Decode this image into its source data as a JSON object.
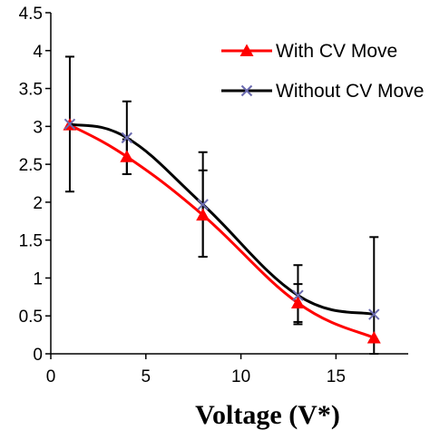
{
  "chart_data": {
    "type": "line",
    "title": "",
    "xlabel": "Voltage  (V*)",
    "ylabel": "",
    "xlim": [
      0,
      18.8
    ],
    "ylim": [
      0,
      4.5
    ],
    "xticks": [
      0,
      5,
      10,
      15
    ],
    "xtick_labels": [
      "0",
      "5",
      "10",
      "15"
    ],
    "yticks": [
      0,
      0.5,
      1,
      1.5,
      2,
      2.5,
      3,
      3.5,
      4,
      4.5
    ],
    "ytick_labels": [
      "0",
      "0.5",
      "1",
      "1.5",
      "2",
      "2.5",
      "3",
      "3.5",
      "4",
      "4.5"
    ],
    "grid": false,
    "legend_position": "top-right",
    "series": [
      {
        "name": "With CV Move",
        "color": "#ff0000",
        "marker": "triangle",
        "x": [
          1,
          4,
          8,
          13,
          17
        ],
        "y": [
          3.02,
          2.6,
          1.83,
          0.67,
          0.21
        ],
        "error_low": [
          null,
          2.37,
          1.28,
          0.42,
          null
        ],
        "error_high": [
          null,
          2.83,
          2.42,
          0.92,
          null
        ]
      },
      {
        "name": "Without CV Move",
        "color": "#000000",
        "marker": "x",
        "x": [
          1,
          4,
          8,
          13,
          17
        ],
        "y": [
          3.03,
          2.85,
          1.97,
          0.77,
          0.52
        ],
        "error_low": [
          2.14,
          2.37,
          1.28,
          0.39,
          0.0
        ],
        "error_high": [
          3.92,
          3.33,
          2.66,
          1.17,
          1.54
        ]
      }
    ]
  }
}
